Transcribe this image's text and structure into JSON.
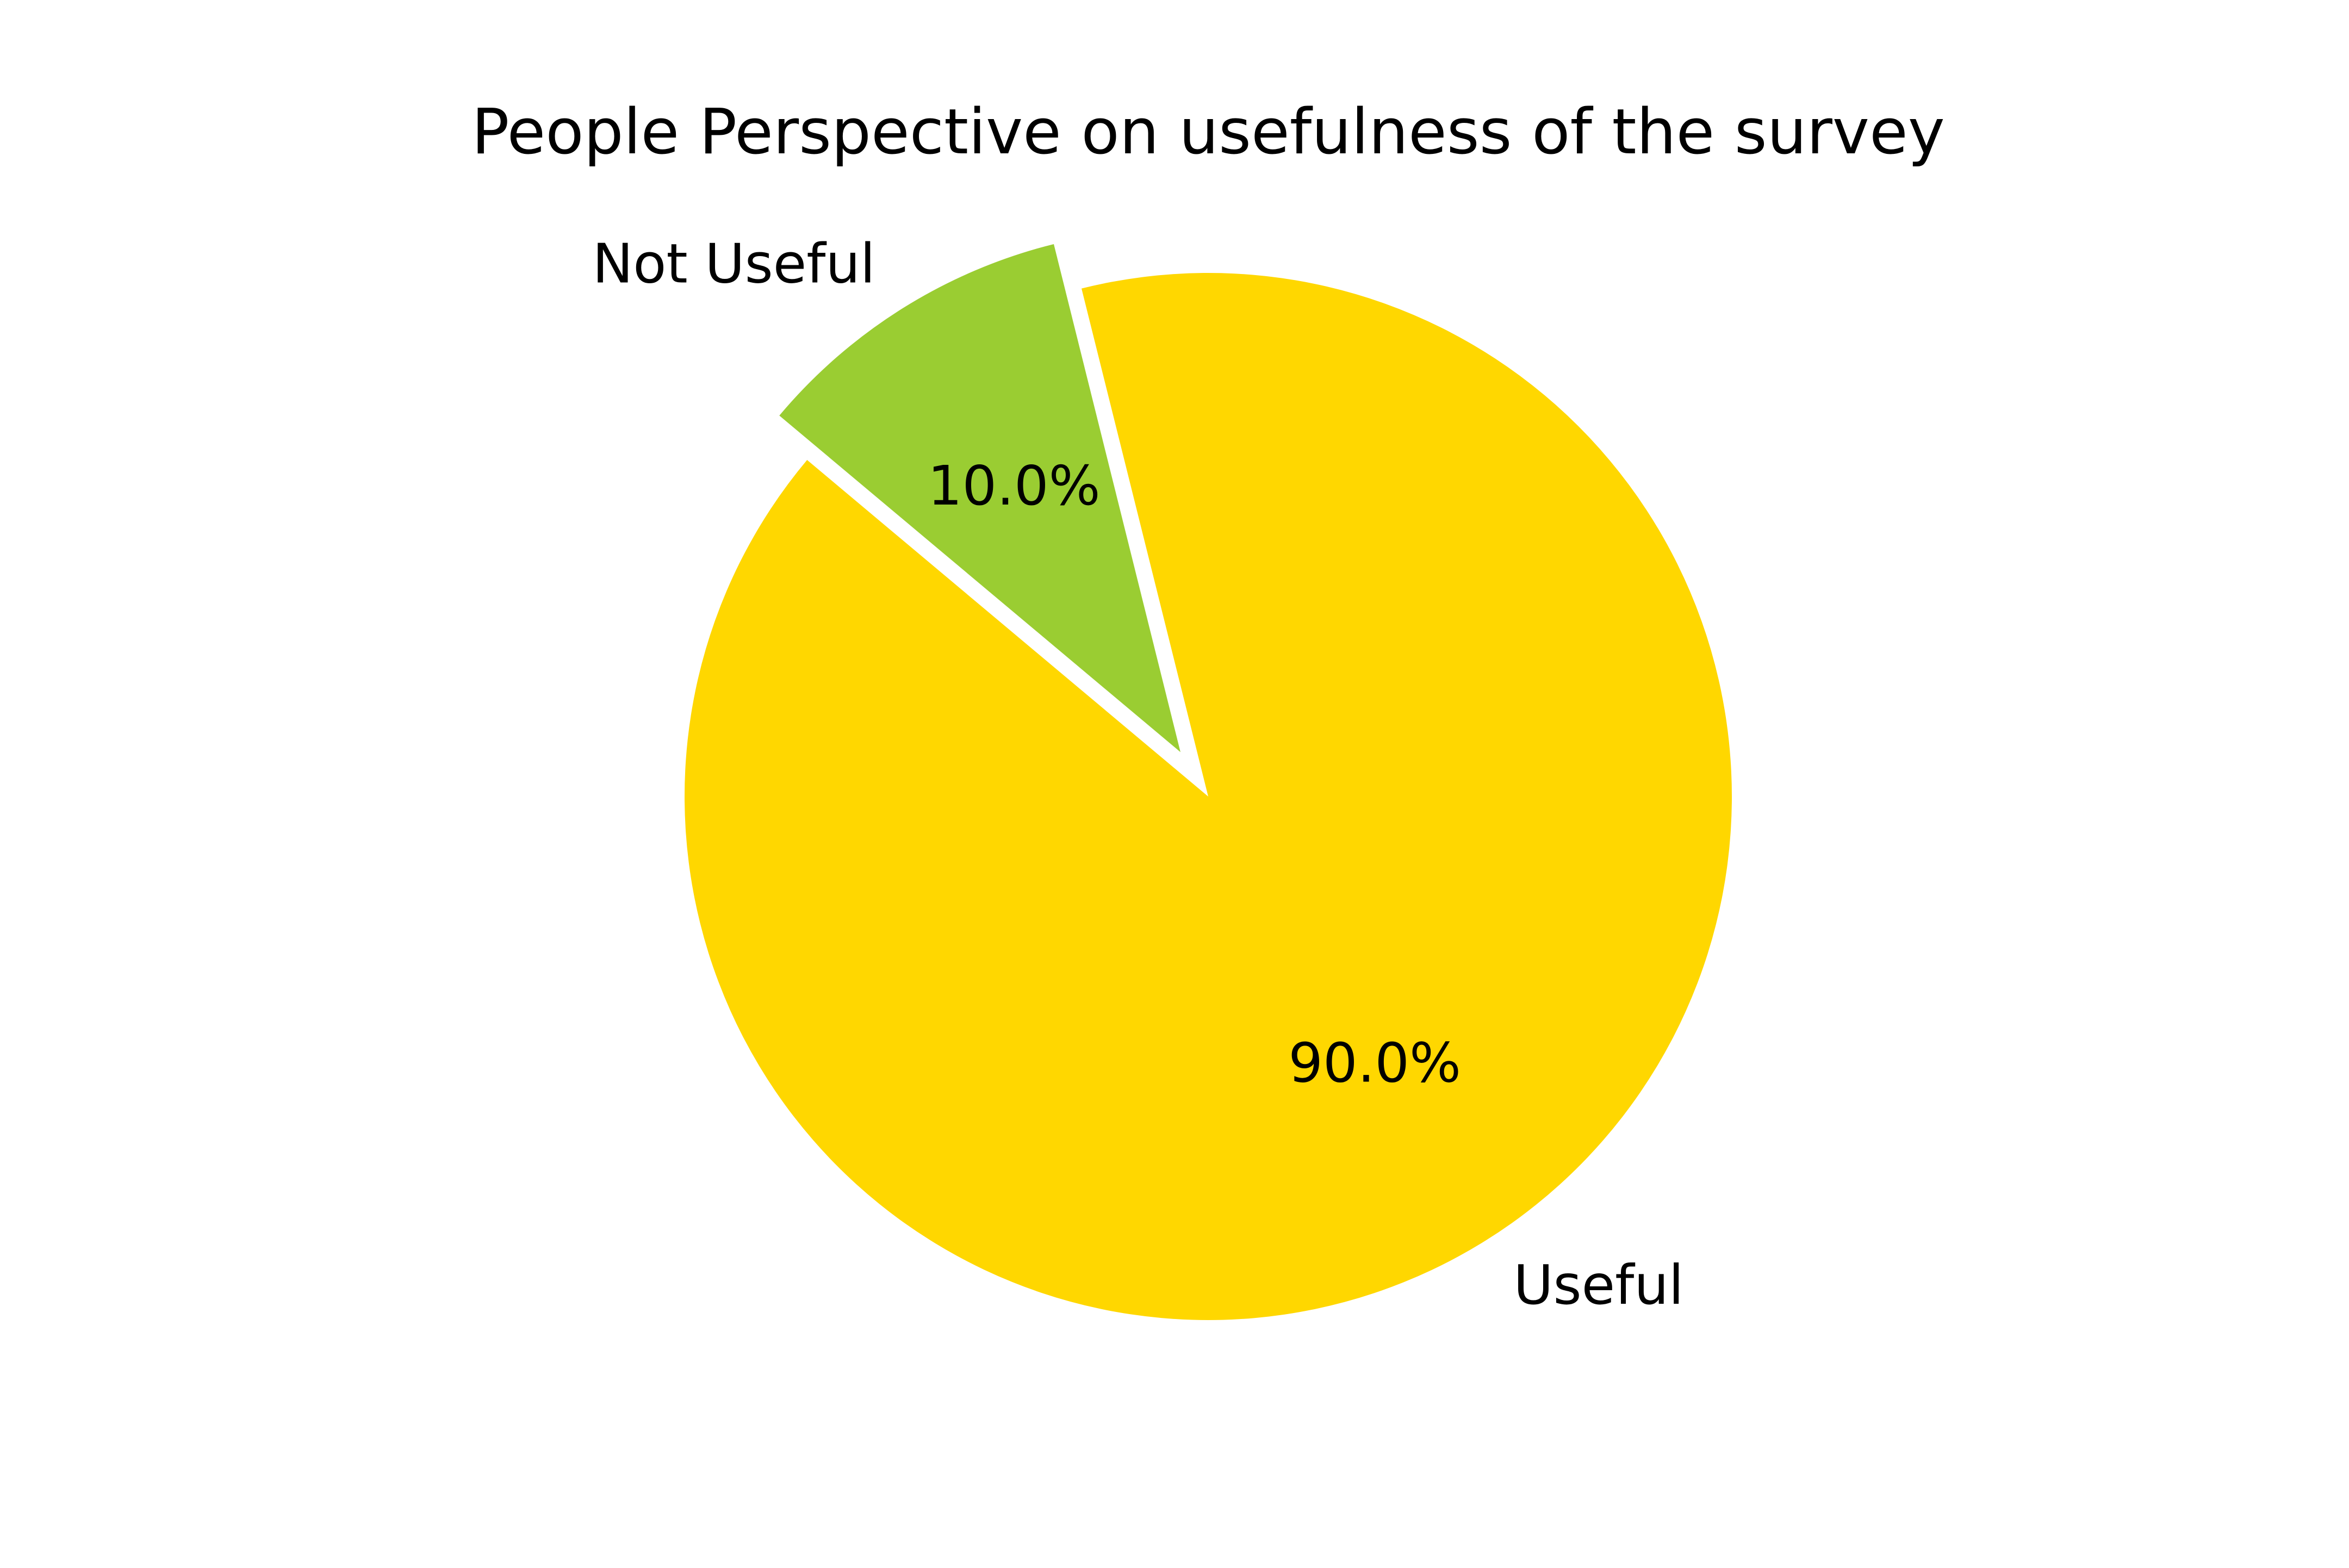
{
  "chart_data": {
    "type": "pie",
    "title": "People Perspective on usefulness of the survey",
    "labels": [
      "Not Useful",
      "Useful"
    ],
    "values": [
      10.0,
      90.0
    ],
    "pct_labels": [
      "10.0%",
      "90.0%"
    ],
    "colors": [
      "#9acd32",
      "#ffd700"
    ],
    "exploded": [
      true,
      false
    ],
    "legend": "none"
  }
}
